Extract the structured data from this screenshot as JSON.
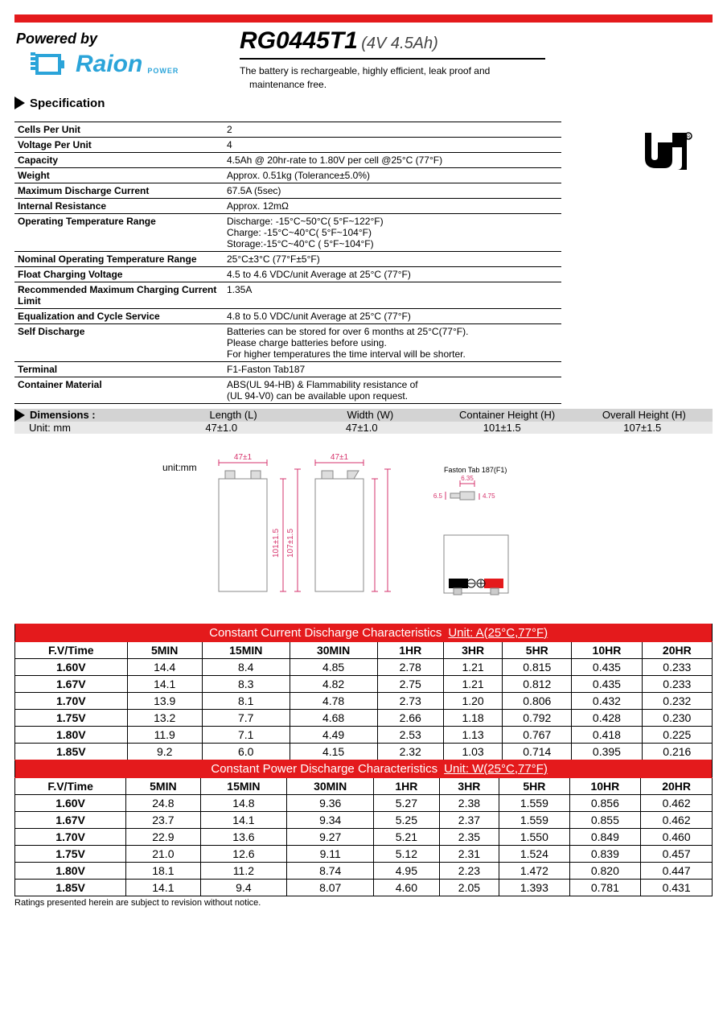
{
  "header": {
    "powered_by": "Powered by",
    "logo_text": "Raion",
    "logo_sub": "POWER",
    "model": "RG0445T1",
    "rating": "(4V 4.5Ah)",
    "description1": "The battery is rechargeable, highly efficient, leak proof and",
    "description2": "maintenance free."
  },
  "spec_section_title": "Specification",
  "specs": [
    {
      "label": "Cells Per Unit",
      "value": "2"
    },
    {
      "label": "Voltage Per Unit",
      "value": "4"
    },
    {
      "label": "Capacity",
      "value": "4.5Ah @ 20hr-rate to 1.80V per cell @25°C (77°F)"
    },
    {
      "label": "Weight",
      "value": "Approx. 0.51kg (Tolerance±5.0%)"
    },
    {
      "label": "Maximum Discharge Current",
      "value": "67.5A (5sec)"
    },
    {
      "label": "Internal Resistance",
      "value": "Approx. 12mΩ"
    },
    {
      "label": "Operating Temperature Range",
      "value": "Discharge: -15°C~50°C( 5°F~122°F)\nCharge: -15°C~40°C( 5°F~104°F)\nStorage:-15°C~40°C ( 5°F~104°F)"
    },
    {
      "label": "Nominal Operating Temperature Range",
      "value": "25°C±3°C (77°F±5°F)"
    },
    {
      "label": "Float Charging Voltage",
      "value": "4.5 to 4.6 VDC/unit Average at 25°C (77°F)"
    },
    {
      "label": "Recommended Maximum Charging Current Limit",
      "value": "1.35A"
    },
    {
      "label": "Equalization and Cycle Service",
      "value": "4.8 to 5.0 VDC/unit Average at 25°C (77°F)"
    },
    {
      "label": "Self Discharge",
      "value": "Batteries can be stored for over 6 months at 25°C(77°F).\nPlease charge batteries before using.\nFor higher temperatures the time interval will be shorter."
    },
    {
      "label": "Terminal",
      "value": "F1-Faston Tab187"
    },
    {
      "label": "Container Material",
      "value": "ABS(UL 94-HB) & Flammability resistance of\n(UL 94-V0) can be available upon request."
    }
  ],
  "dimensions": {
    "title": "Dimensions :",
    "unit_label": "Unit: mm",
    "columns": [
      "Length (L)",
      "Width (W)",
      "Container Height (H)",
      "Overall Height (H)"
    ],
    "values": [
      "47±1.0",
      "47±1.0",
      "101±1.5",
      "107±1.5"
    ]
  },
  "diagram": {
    "unit_label": "unit:mm",
    "width_dim": "47±1",
    "height_inner": "101±1.5",
    "height_outer": "107±1.5",
    "faston_label": "Faston Tab 187(F1)",
    "faston_w": "6.35",
    "faston_h1": "6.5",
    "faston_h2": "4.75",
    "dim_color": "#d6336c"
  },
  "discharge_current": {
    "title": "Constant Current Discharge Characteristics",
    "unit": "Unit: A(25°C,77°F)",
    "time_cols": [
      "5MIN",
      "15MIN",
      "30MIN",
      "1HR",
      "3HR",
      "5HR",
      "10HR",
      "20HR"
    ],
    "row_header": "F.V/Time",
    "rows": [
      {
        "v": "1.60V",
        "vals": [
          "14.4",
          "8.4",
          "4.85",
          "2.78",
          "1.21",
          "0.815",
          "0.435",
          "0.233"
        ]
      },
      {
        "v": "1.67V",
        "vals": [
          "14.1",
          "8.3",
          "4.82",
          "2.75",
          "1.21",
          "0.812",
          "0.435",
          "0.233"
        ]
      },
      {
        "v": "1.70V",
        "vals": [
          "13.9",
          "8.1",
          "4.78",
          "2.73",
          "1.20",
          "0.806",
          "0.432",
          "0.232"
        ]
      },
      {
        "v": "1.75V",
        "vals": [
          "13.2",
          "7.7",
          "4.68",
          "2.66",
          "1.18",
          "0.792",
          "0.428",
          "0.230"
        ]
      },
      {
        "v": "1.80V",
        "vals": [
          "11.9",
          "7.1",
          "4.49",
          "2.53",
          "1.13",
          "0.767",
          "0.418",
          "0.225"
        ]
      },
      {
        "v": "1.85V",
        "vals": [
          "9.2",
          "6.0",
          "4.15",
          "2.32",
          "1.03",
          "0.714",
          "0.395",
          "0.216"
        ]
      }
    ]
  },
  "discharge_power": {
    "title": "Constant Power Discharge Characteristics",
    "unit": "Unit: W(25°C,77°F)",
    "time_cols": [
      "5MIN",
      "15MIN",
      "30MIN",
      "1HR",
      "3HR",
      "5HR",
      "10HR",
      "20HR"
    ],
    "row_header": "F.V/Time",
    "rows": [
      {
        "v": "1.60V",
        "vals": [
          "24.8",
          "14.8",
          "9.36",
          "5.27",
          "2.38",
          "1.559",
          "0.856",
          "0.462"
        ]
      },
      {
        "v": "1.67V",
        "vals": [
          "23.7",
          "14.1",
          "9.34",
          "5.25",
          "2.37",
          "1.559",
          "0.855",
          "0.462"
        ]
      },
      {
        "v": "1.70V",
        "vals": [
          "22.9",
          "13.6",
          "9.27",
          "5.21",
          "2.35",
          "1.550",
          "0.849",
          "0.460"
        ]
      },
      {
        "v": "1.75V",
        "vals": [
          "21.0",
          "12.6",
          "9.11",
          "5.12",
          "2.31",
          "1.524",
          "0.839",
          "0.457"
        ]
      },
      {
        "v": "1.80V",
        "vals": [
          "18.1",
          "11.2",
          "8.74",
          "4.95",
          "2.23",
          "1.472",
          "0.820",
          "0.447"
        ]
      },
      {
        "v": "1.85V",
        "vals": [
          "14.1",
          "9.4",
          "8.07",
          "4.60",
          "2.05",
          "1.393",
          "0.781",
          "0.431"
        ]
      }
    ]
  },
  "footnote": "Ratings presented herein are subject to revision without notice.",
  "colors": {
    "accent": "#e41a1c",
    "logo": "#2ba4d9",
    "dim_bg1": "#d3d3d3",
    "dim_bg2": "#e8e8e8"
  }
}
